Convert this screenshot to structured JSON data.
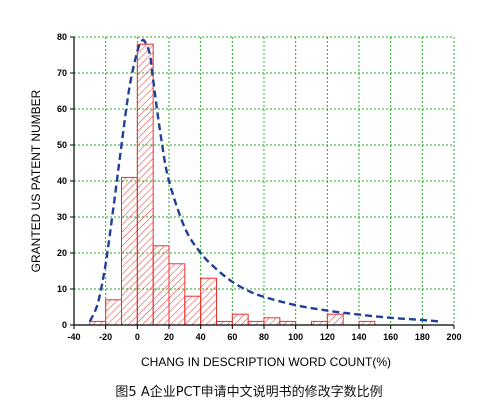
{
  "caption": "图5 A企业PCT申请中文说明书的修改字数比例",
  "colors": {
    "bar_stroke": "#e8312f",
    "bar_hatch": "#e8312f",
    "curve": "#1f3f9a",
    "grid": "#22a822",
    "axis": "#000000"
  },
  "chart_data": {
    "type": "bar",
    "xlabel": "CHANG IN DESCRIPTION WORD COUNT(%)",
    "ylabel": "GRANTED US PATENT NUMBER",
    "xlim": [
      -40,
      200
    ],
    "ylim": [
      0,
      80
    ],
    "xticks": [
      -40,
      -20,
      0,
      20,
      40,
      60,
      80,
      100,
      120,
      140,
      160,
      180,
      200
    ],
    "xtick_labels": [
      "-40",
      "-20",
      "0",
      "20",
      "40",
      "60",
      "80",
      "100",
      "120",
      "140",
      "160",
      "180",
      "200"
    ],
    "yticks": [
      0,
      10,
      20,
      30,
      40,
      50,
      60,
      70,
      80
    ],
    "ytick_labels": [
      "0",
      "10",
      "20",
      "30",
      "40",
      "50",
      "60",
      "70",
      "80"
    ],
    "grid": true,
    "grid_style": "dotted",
    "bins": [
      {
        "x0": -30,
        "x1": -20,
        "value": 1
      },
      {
        "x0": -20,
        "x1": -10,
        "value": 7
      },
      {
        "x0": -10,
        "x1": 0,
        "value": 41
      },
      {
        "x0": 0,
        "x1": 10,
        "value": 78
      },
      {
        "x0": 10,
        "x1": 20,
        "value": 22
      },
      {
        "x0": 20,
        "x1": 30,
        "value": 17
      },
      {
        "x0": 30,
        "x1": 40,
        "value": 8
      },
      {
        "x0": 40,
        "x1": 50,
        "value": 13
      },
      {
        "x0": 50,
        "x1": 60,
        "value": 1
      },
      {
        "x0": 60,
        "x1": 70,
        "value": 3
      },
      {
        "x0": 70,
        "x1": 80,
        "value": 1
      },
      {
        "x0": 80,
        "x1": 90,
        "value": 2
      },
      {
        "x0": 90,
        "x1": 100,
        "value": 1
      },
      {
        "x0": 110,
        "x1": 120,
        "value": 1
      },
      {
        "x0": 120,
        "x1": 130,
        "value": 3
      },
      {
        "x0": 140,
        "x1": 150,
        "value": 1
      }
    ],
    "fit_curve": {
      "type": "line",
      "style": "dashed",
      "x": [
        -30,
        -25,
        -20,
        -15,
        -10,
        -5,
        0,
        3,
        5,
        8,
        10,
        15,
        20,
        30,
        40,
        50,
        60,
        70,
        80,
        100,
        120,
        140,
        160,
        180,
        190
      ],
      "y": [
        1,
        6,
        17,
        33,
        50,
        66,
        76,
        79,
        78.5,
        75,
        68,
        52,
        40,
        27,
        20,
        15.5,
        12,
        9.5,
        7.8,
        5.5,
        4,
        2.9,
        2,
        1.4,
        1
      ]
    }
  }
}
